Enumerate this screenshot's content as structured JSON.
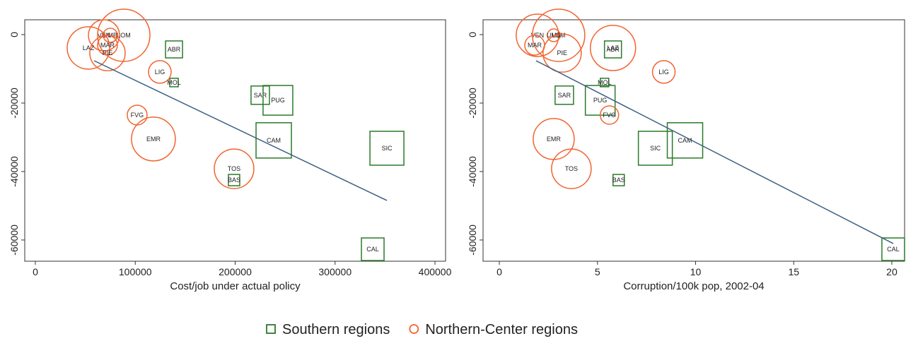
{
  "chart_data": [
    {
      "type": "scatter",
      "x_label": "Cost/job under actual policy",
      "xlim": [
        -10600,
        410600
      ],
      "ylim": [
        -66200,
        4330
      ],
      "xticks": [
        0,
        100000,
        200000,
        300000,
        400000
      ],
      "yticks": [
        0,
        -20000,
        -40000,
        -60000
      ],
      "legend": "bottom",
      "series": [
        {
          "name": "Southern regions",
          "color": "#2a7a2a",
          "marker": "square",
          "labels": [
            "ABR",
            "MOL",
            "SAR",
            "PUG",
            "CAM",
            "SIC",
            "BAS",
            "CAL"
          ],
          "x": [
            138800,
            138800,
            225100,
            242800,
            238600,
            351900,
            198900,
            337700
          ],
          "values": [
            -4330,
            -14000,
            -17700,
            -19200,
            -30900,
            -33200,
            -42500,
            -62700
          ],
          "sizes": [
            12,
            6,
            13,
            21,
            25,
            24,
            8,
            16
          ]
        },
        {
          "name": "Northern-Center regions",
          "color": "#f26430",
          "marker": "circle",
          "labels": [
            "VEN",
            "LOM",
            "UMB",
            "LAZ",
            "MAR",
            "PIE",
            "LIG",
            "FVG",
            "EMR",
            "TOS"
          ],
          "x": [
            68700,
            88500,
            75000,
            53100,
            72200,
            72200,
            124600,
            101900,
            118200,
            198900
          ],
          "values": [
            -200,
            -200,
            -200,
            -3900,
            -3100,
            -5400,
            -10900,
            -23500,
            -30500,
            -39200
          ],
          "sizes": [
            22,
            37,
            10,
            30,
            14,
            25,
            16,
            14,
            31,
            28
          ]
        }
      ],
      "fit": {
        "color": "#3b5f82",
        "x": [
          58800,
          351900
        ],
        "values": [
          -7630,
          -48460
        ]
      }
    },
    {
      "type": "scatter",
      "x_label": "Corruption/100k pop, 2002-04",
      "xlim": [
        -0.83,
        20.65
      ],
      "ylim": [
        -66200,
        4330
      ],
      "xticks": [
        0,
        5,
        10,
        15,
        20
      ],
      "yticks": [
        0,
        -20000,
        -40000,
        -60000
      ],
      "series": [
        {
          "color": "#2a7a2a",
          "marker": "square",
          "labels": [
            "ABR",
            "MOL",
            "SAR",
            "PUG",
            "CAM",
            "SIC",
            "BAS",
            "CAL"
          ],
          "x": [
            5.79,
            5.36,
            3.31,
            5.14,
            9.46,
            7.95,
            6.08,
            20.07
          ],
          "values": [
            -4330,
            -14000,
            -17700,
            -19200,
            -30900,
            -33200,
            -42500,
            -62700
          ],
          "sizes": [
            12,
            6,
            13,
            21,
            25,
            24,
            8,
            16
          ]
        },
        {
          "color": "#f26430",
          "marker": "circle",
          "labels": [
            "VEN",
            "LOM",
            "UMB",
            "LAZ",
            "MAR",
            "PIE",
            "LIG",
            "FVG",
            "EMR",
            "TOS"
          ],
          "x": [
            1.94,
            3.02,
            2.77,
            5.79,
            1.8,
            3.2,
            8.38,
            5.61,
            2.77,
            3.67
          ],
          "values": [
            -200,
            -200,
            -200,
            -3900,
            -3100,
            -5400,
            -10900,
            -23500,
            -30500,
            -39200
          ],
          "sizes": [
            30,
            37,
            9,
            32,
            14,
            27,
            16,
            13,
            29,
            28
          ]
        }
      ],
      "fit": {
        "color": "#3b5f82",
        "x": [
          1.87,
          20.07
        ],
        "values": [
          -7630,
          -61030
        ]
      }
    }
  ]
}
